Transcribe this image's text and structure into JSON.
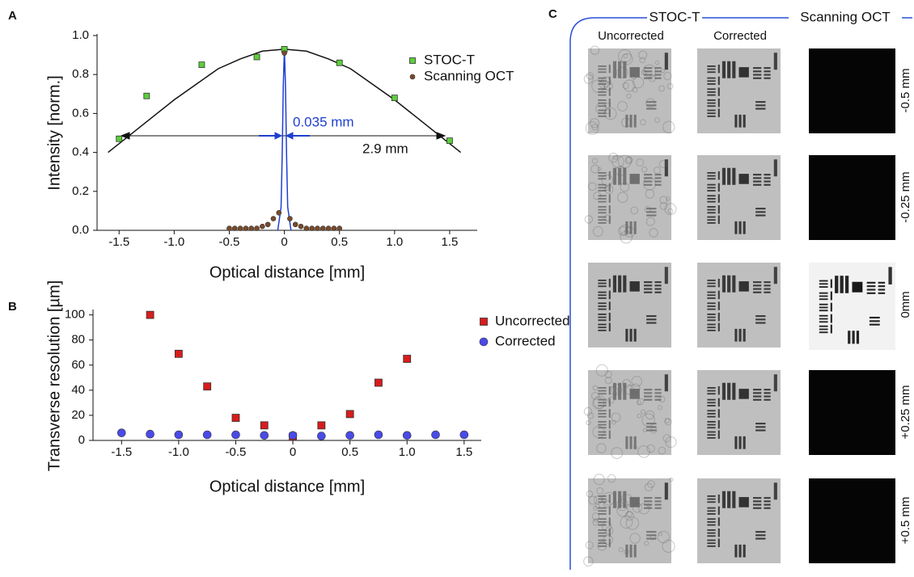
{
  "chart_data": [
    {
      "type": "scatter",
      "label": "A",
      "x_label": "Optical distance [mm]",
      "y_label": "Intensity [norm.]",
      "xlim": [
        -1.7,
        1.75
      ],
      "ylim": [
        0,
        1.0
      ],
      "xticks": [
        -1.5,
        {
          "value": -1.0,
          "label": "-1.0"
        },
        -0.5,
        0,
        0.5,
        {
          "value": 1.0,
          "label": "1.0"
        },
        1.5
      ],
      "yticks": [
        {
          "value": 0,
          "label": "0.0"
        },
        0.2,
        0.4,
        0.6,
        0.8,
        {
          "value": 1.0,
          "label": "1.0"
        }
      ],
      "series": [
        {
          "name": "STOC-T",
          "color": "#5ccf3a",
          "marker": "square",
          "x": [
            -1.5,
            -1.25,
            -0.75,
            -0.25,
            0,
            0.5,
            1.0,
            1.5
          ],
          "values": [
            0.47,
            0.69,
            0.85,
            0.89,
            0.93,
            0.86,
            0.68,
            0.46
          ]
        },
        {
          "name": "Scanning OCT",
          "color": "#7a4a2a",
          "marker": "circle",
          "x": [
            -0.5,
            -0.45,
            -0.4,
            -0.35,
            -0.3,
            -0.25,
            -0.2,
            -0.15,
            -0.1,
            -0.05,
            0,
            0.05,
            0.1,
            0.15,
            0.2,
            0.25,
            0.3,
            0.35,
            0.4,
            0.45,
            0.5
          ],
          "values": [
            0.01,
            0.01,
            0.01,
            0.01,
            0.01,
            0.01,
            0.02,
            0.03,
            0.06,
            0.09,
            0.91,
            0.06,
            0.03,
            0.02,
            0.01,
            0.01,
            0.01,
            0.01,
            0.01,
            0.01,
            0.01
          ]
        }
      ],
      "curves": [
        {
          "color": "#111111",
          "x": [
            -1.6,
            -1.4,
            -1.2,
            -1.0,
            -0.8,
            -0.6,
            -0.4,
            -0.2,
            0,
            0.2,
            0.4,
            0.6,
            0.8,
            1.0,
            1.2,
            1.4,
            1.6
          ],
          "values": [
            0.4,
            0.49,
            0.58,
            0.67,
            0.75,
            0.83,
            0.88,
            0.92,
            0.93,
            0.92,
            0.88,
            0.83,
            0.75,
            0.67,
            0.58,
            0.49,
            0.4
          ]
        },
        {
          "color": "#1f3fd0",
          "x": [
            -0.06,
            -0.03,
            -0.02,
            -0.01,
            0,
            0.01,
            0.02,
            0.03,
            0.06
          ],
          "values": [
            0,
            0.12,
            0.38,
            0.74,
            0.93,
            0.74,
            0.38,
            0.12,
            0
          ]
        }
      ],
      "annotations": [
        {
          "text": "0.035 mm",
          "color": "#1f3fd0"
        },
        {
          "text": "2.9 mm",
          "color": "#111111"
        }
      ]
    },
    {
      "type": "scatter",
      "label": "B",
      "x_label": "Optical distance [mm]",
      "y_label": "Transverse resolution [µm]",
      "xlim": [
        -1.75,
        1.65
      ],
      "ylim": [
        0,
        103
      ],
      "xticks": [
        -1.5,
        {
          "value": -1.0,
          "label": "-1.0"
        },
        -0.5,
        0,
        0.5,
        {
          "value": 1.0,
          "label": "1.0"
        },
        1.5
      ],
      "yticks": [
        0,
        20,
        40,
        60,
        80,
        100
      ],
      "series": [
        {
          "name": "Uncorrected",
          "color": "#d81c1c",
          "marker": "square",
          "x": [
            -1.25,
            -1.0,
            -0.75,
            -0.5,
            -0.25,
            0,
            0.25,
            0.5,
            0.75,
            1.0
          ],
          "values": [
            100,
            69,
            43,
            18,
            12,
            3,
            12,
            21,
            46,
            65
          ]
        },
        {
          "name": "Corrected",
          "color": "#4a4ae8",
          "marker": "circle",
          "x": [
            -1.5,
            -1.25,
            -1.0,
            -0.75,
            -0.5,
            -0.25,
            0,
            0.25,
            0.5,
            0.75,
            1.0,
            1.25,
            1.5
          ],
          "values": [
            6,
            5,
            4.5,
            4.5,
            4.5,
            4,
            4,
            3.5,
            4,
            4.5,
            4,
            4.5,
            4.5
          ]
        }
      ]
    }
  ],
  "panel_c": {
    "label": "C",
    "groups": [
      "STOC-T",
      "Scanning OCT"
    ],
    "columns": [
      "Uncorrected",
      "Corrected"
    ],
    "rows": [
      "-0.5 mm",
      "-0.25 mm",
      "0mm",
      "+0.25 mm",
      "+0.5 mm"
    ]
  }
}
